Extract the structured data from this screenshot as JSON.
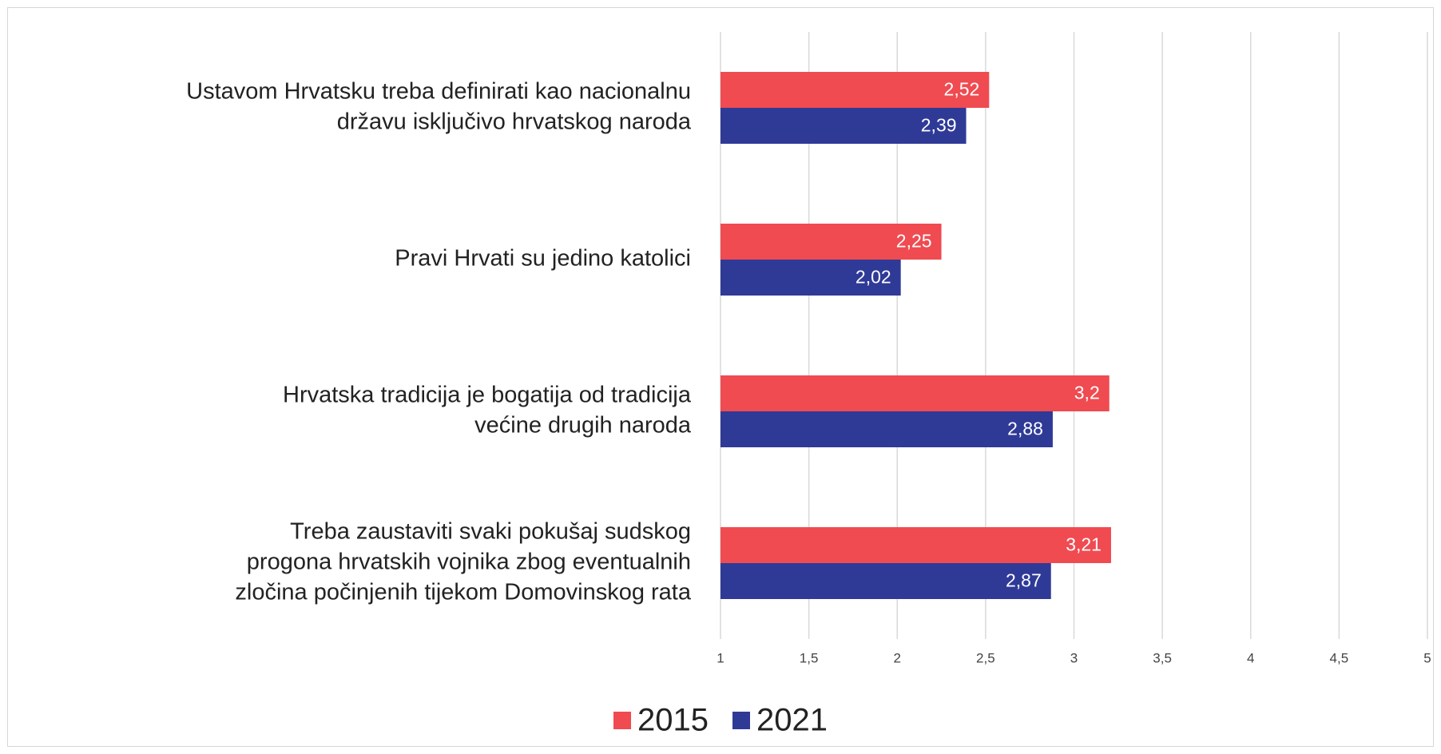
{
  "chart_data": {
    "type": "hbar",
    "categories": [
      [
        "Ustavom Hrvatsku treba definirati kao nacionalnu",
        "državu isključivo hrvatskog naroda"
      ],
      [
        "Pravi Hrvati su jedino katolici"
      ],
      [
        "Hrvatska tradicija je bogatija od tradicija",
        "većine drugih naroda"
      ],
      [
        "Treba zaustaviti svaki pokušaj sudskog",
        "progona hrvatskih vojnika zbog eventualnih",
        "zločina počinjenih tijekom Domovinskog rata"
      ]
    ],
    "series": [
      {
        "name": "2015",
        "color": "#ef4b51",
        "values": [
          2.52,
          2.25,
          3.2,
          3.21
        ],
        "value_labels": [
          "2,52",
          "2,25",
          "3,2",
          "3,21"
        ]
      },
      {
        "name": "2021",
        "color": "#2f3a97",
        "values": [
          2.39,
          2.02,
          2.88,
          2.87
        ],
        "value_labels": [
          "2,39",
          "2,02",
          "2,88",
          "2,87"
        ]
      }
    ],
    "xlim": [
      1,
      5
    ],
    "xticks": [
      1,
      {
        "value": 1.5,
        "label": "1,5"
      },
      2,
      {
        "value": 2.5,
        "label": "2,5"
      },
      3,
      {
        "value": 3.5,
        "label": "3,5"
      },
      4,
      {
        "value": 4.5,
        "label": "4,5"
      },
      5
    ],
    "grid": true,
    "legend": "bottom"
  }
}
